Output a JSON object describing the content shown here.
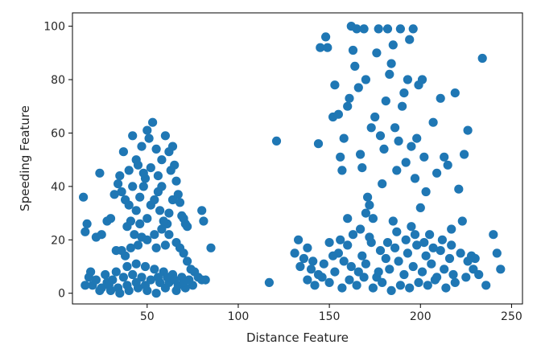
{
  "chart_data": {
    "type": "scatter",
    "xlabel": "Distance Feature",
    "ylabel": "Speeding Feature",
    "xlim": [
      9,
      256
    ],
    "ylim": [
      -4,
      105
    ],
    "xticks": [
      50,
      100,
      150,
      200,
      250
    ],
    "yticks": [
      0,
      20,
      40,
      60,
      80,
      100
    ],
    "grid": false,
    "legend": "none",
    "marker_color": "#1f77b4",
    "series": [
      {
        "points": [
          [
            15,
            36
          ],
          [
            17,
            26
          ],
          [
            16,
            23
          ],
          [
            19,
            8
          ],
          [
            22,
            21
          ],
          [
            24,
            45
          ],
          [
            25,
            22
          ],
          [
            28,
            27
          ],
          [
            30,
            28
          ],
          [
            32,
            37
          ],
          [
            34,
            41
          ],
          [
            35,
            44
          ],
          [
            37,
            53
          ],
          [
            33,
            16
          ],
          [
            36,
            38
          ],
          [
            38,
            35
          ],
          [
            40,
            46
          ],
          [
            42,
            59
          ],
          [
            44,
            50
          ],
          [
            45,
            48
          ],
          [
            47,
            55
          ],
          [
            48,
            40
          ],
          [
            49,
            43
          ],
          [
            50,
            61
          ],
          [
            51,
            58
          ],
          [
            53,
            64
          ],
          [
            55,
            54
          ],
          [
            56,
            44
          ],
          [
            58,
            50
          ],
          [
            60,
            59
          ],
          [
            62,
            53
          ],
          [
            63,
            46
          ],
          [
            64,
            55
          ],
          [
            65,
            48
          ],
          [
            66,
            42
          ],
          [
            67,
            37
          ],
          [
            68,
            34
          ],
          [
            69,
            29
          ],
          [
            70,
            28
          ],
          [
            71,
            26
          ],
          [
            72,
            25
          ],
          [
            62,
            30
          ],
          [
            61,
            26
          ],
          [
            59,
            27
          ],
          [
            57,
            31
          ],
          [
            52,
            33
          ],
          [
            46,
            36
          ],
          [
            44,
            31
          ],
          [
            41,
            27
          ],
          [
            39,
            25
          ],
          [
            43,
            22
          ],
          [
            47,
            21
          ],
          [
            54,
            22
          ],
          [
            58,
            24
          ],
          [
            62,
            22
          ],
          [
            66,
            19
          ],
          [
            68,
            17
          ],
          [
            70,
            15
          ],
          [
            60,
            18
          ],
          [
            55,
            17
          ],
          [
            50,
            20
          ],
          [
            45,
            18
          ],
          [
            41,
            17
          ],
          [
            38,
            14
          ],
          [
            36,
            16
          ],
          [
            48,
            45
          ],
          [
            52,
            47
          ],
          [
            56,
            38
          ],
          [
            54,
            35
          ],
          [
            42,
            40
          ],
          [
            40,
            33
          ],
          [
            46,
            26
          ],
          [
            58,
            40
          ],
          [
            64,
            35
          ],
          [
            50,
            28
          ],
          [
            80,
            31
          ],
          [
            81,
            27
          ],
          [
            85,
            17
          ],
          [
            72,
            12
          ],
          [
            74,
            9
          ],
          [
            76,
            8
          ],
          [
            78,
            6
          ],
          [
            80,
            5
          ],
          [
            82,
            5
          ],
          [
            75,
            3
          ],
          [
            71,
            2
          ],
          [
            66,
            1
          ],
          [
            60,
            2
          ],
          [
            55,
            0
          ],
          [
            50,
            1
          ],
          [
            45,
            2
          ],
          [
            40,
            1
          ],
          [
            35,
            0
          ],
          [
            30,
            1
          ],
          [
            25,
            2
          ],
          [
            20,
            3
          ],
          [
            16,
            3
          ],
          [
            18,
            6
          ],
          [
            22,
            5
          ],
          [
            27,
            7
          ],
          [
            33,
            8
          ],
          [
            39,
            10
          ],
          [
            44,
            11
          ],
          [
            49,
            10
          ],
          [
            54,
            9
          ],
          [
            59,
            8
          ],
          [
            64,
            7
          ],
          [
            69,
            6
          ],
          [
            28,
            4
          ],
          [
            31,
            5
          ],
          [
            37,
            6
          ],
          [
            42,
            7
          ],
          [
            47,
            6
          ],
          [
            52,
            5
          ],
          [
            57,
            4
          ],
          [
            62,
            4
          ],
          [
            67,
            3
          ],
          [
            73,
            5
          ],
          [
            24,
            1
          ],
          [
            29,
            3
          ],
          [
            34,
            2
          ],
          [
            39,
            3
          ],
          [
            44,
            4
          ],
          [
            49,
            3
          ],
          [
            56,
            6
          ],
          [
            61,
            6
          ],
          [
            65,
            5
          ],
          [
            70,
            4
          ],
          [
            117,
            4
          ],
          [
            121,
            57
          ],
          [
            131,
            15
          ],
          [
            133,
            20
          ],
          [
            134,
            10
          ],
          [
            136,
            13
          ],
          [
            138,
            5
          ],
          [
            140,
            9
          ],
          [
            142,
            3
          ],
          [
            144,
            56
          ],
          [
            145,
            92
          ],
          [
            146,
            6
          ],
          [
            148,
            96
          ],
          [
            149,
            92
          ],
          [
            150,
            19
          ],
          [
            152,
            66
          ],
          [
            153,
            78
          ],
          [
            155,
            67
          ],
          [
            156,
            51
          ],
          [
            157,
            46
          ],
          [
            158,
            58
          ],
          [
            160,
            70
          ],
          [
            161,
            73
          ],
          [
            162,
            100
          ],
          [
            163,
            91
          ],
          [
            164,
            85
          ],
          [
            165,
            99
          ],
          [
            166,
            77
          ],
          [
            167,
            52
          ],
          [
            168,
            47
          ],
          [
            169,
            99
          ],
          [
            170,
            80
          ],
          [
            171,
            36
          ],
          [
            172,
            33
          ],
          [
            173,
            62
          ],
          [
            174,
            28
          ],
          [
            175,
            66
          ],
          [
            176,
            90
          ],
          [
            177,
            99
          ],
          [
            178,
            59
          ],
          [
            179,
            41
          ],
          [
            180,
            54
          ],
          [
            181,
            72
          ],
          [
            182,
            99
          ],
          [
            183,
            82
          ],
          [
            184,
            86
          ],
          [
            185,
            93
          ],
          [
            186,
            62
          ],
          [
            187,
            46
          ],
          [
            188,
            57
          ],
          [
            189,
            99
          ],
          [
            190,
            70
          ],
          [
            191,
            75
          ],
          [
            192,
            49
          ],
          [
            193,
            80
          ],
          [
            194,
            95
          ],
          [
            195,
            55
          ],
          [
            196,
            99
          ],
          [
            197,
            43
          ],
          [
            198,
            58
          ],
          [
            199,
            78
          ],
          [
            200,
            32
          ],
          [
            201,
            80
          ],
          [
            202,
            51
          ],
          [
            203,
            38
          ],
          [
            205,
            22
          ],
          [
            207,
            64
          ],
          [
            209,
            45
          ],
          [
            211,
            73
          ],
          [
            213,
            51
          ],
          [
            215,
            48
          ],
          [
            217,
            24
          ],
          [
            219,
            75
          ],
          [
            221,
            39
          ],
          [
            223,
            27
          ],
          [
            224,
            52
          ],
          [
            226,
            61
          ],
          [
            228,
            14
          ],
          [
            230,
            13
          ],
          [
            232,
            7
          ],
          [
            234,
            88
          ],
          [
            236,
            3
          ],
          [
            240,
            22
          ],
          [
            242,
            15
          ],
          [
            244,
            9
          ],
          [
            155,
            15
          ],
          [
            158,
            12
          ],
          [
            160,
            18
          ],
          [
            163,
            22
          ],
          [
            166,
            8
          ],
          [
            168,
            14
          ],
          [
            170,
            11
          ],
          [
            173,
            19
          ],
          [
            176,
            6
          ],
          [
            178,
            16
          ],
          [
            181,
            13
          ],
          [
            183,
            9
          ],
          [
            186,
            17
          ],
          [
            188,
            12
          ],
          [
            191,
            7
          ],
          [
            193,
            15
          ],
          [
            196,
            10
          ],
          [
            198,
            18
          ],
          [
            201,
            8
          ],
          [
            203,
            14
          ],
          [
            206,
            11
          ],
          [
            208,
            5
          ],
          [
            211,
            16
          ],
          [
            213,
            9
          ],
          [
            216,
            13
          ],
          [
            218,
            7
          ],
          [
            150,
            4
          ],
          [
            153,
            8
          ],
          [
            157,
            2
          ],
          [
            161,
            5
          ],
          [
            165,
            3
          ],
          [
            169,
            6
          ],
          [
            174,
            2
          ],
          [
            179,
            4
          ],
          [
            184,
            1
          ],
          [
            189,
            3
          ],
          [
            194,
            2
          ],
          [
            199,
            4
          ],
          [
            204,
            3
          ],
          [
            209,
            6
          ],
          [
            214,
            2
          ],
          [
            219,
            4
          ],
          [
            225,
            6
          ],
          [
            229,
            9
          ],
          [
            138,
            17
          ],
          [
            141,
            12
          ],
          [
            144,
            7
          ],
          [
            147,
            11
          ],
          [
            152,
            14
          ],
          [
            156,
            20
          ],
          [
            162,
            10
          ],
          [
            167,
            24
          ],
          [
            172,
            21
          ],
          [
            177,
            8
          ],
          [
            182,
            19
          ],
          [
            187,
            23
          ],
          [
            192,
            20
          ],
          [
            197,
            22
          ],
          [
            202,
            19
          ],
          [
            207,
            17
          ],
          [
            212,
            20
          ],
          [
            217,
            18
          ],
          [
            222,
            15
          ],
          [
            226,
            12
          ],
          [
            160,
            28
          ],
          [
            185,
            27
          ],
          [
            195,
            25
          ],
          [
            170,
            30
          ]
        ]
      }
    ]
  }
}
